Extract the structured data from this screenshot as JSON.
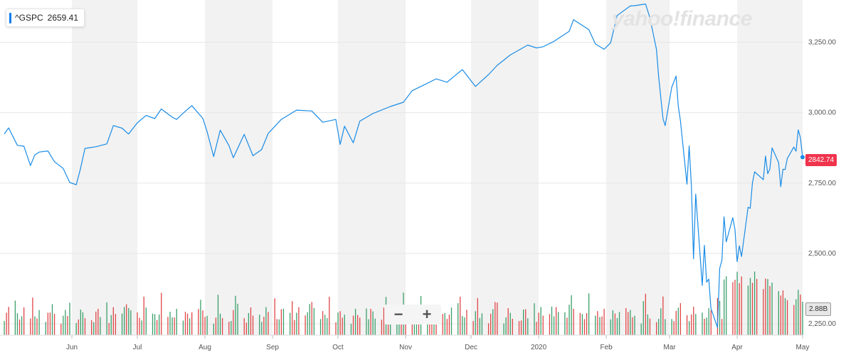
{
  "legend": {
    "ticker": "^GSPC",
    "value": "2659.41"
  },
  "watermark": "yahoo!finance",
  "last_price_tag": "2842.74",
  "volume_tag": "2.88B",
  "zoom": {
    "minus": "−",
    "plus": "+"
  },
  "colors": {
    "line": "#1a8ce6",
    "up": "#3a9f6a",
    "down": "#e04646",
    "band": "#f2f2f2",
    "price_tag": "#f0344d"
  },
  "icons": {
    "zoom_out": "minus-icon",
    "zoom_in": "plus-icon"
  },
  "chart_data": {
    "type": "line",
    "title": "",
    "y_ticks": [
      "2,250.00",
      "2,500.00",
      "2,750.00",
      "3,000.00",
      "3,250.00"
    ],
    "y_tick_values": [
      2250,
      2500,
      2750,
      3000,
      3250
    ],
    "ylim": [
      2210,
      3390
    ],
    "x_ticks": [
      "Jun",
      "Jul",
      "Aug",
      "Sep",
      "Oct",
      "Nov",
      "Dec",
      "2020",
      "Feb",
      "Mar",
      "Apr",
      "May"
    ],
    "x_tick_dates": [
      "2019-06-01",
      "2019-07-01",
      "2019-08-01",
      "2019-09-01",
      "2019-10-01",
      "2019-11-01",
      "2019-12-01",
      "2020-01-01",
      "2020-02-01",
      "2020-03-01",
      "2020-04-01",
      "2020-05-01"
    ],
    "x_start": "2019-05-01",
    "x_end": "2020-05-01",
    "grid": true,
    "series": [
      {
        "values": [
          [
            "2019-05-01",
            2924
          ],
          [
            "2019-05-03",
            2946
          ],
          [
            "2019-05-07",
            2884
          ],
          [
            "2019-05-10",
            2881
          ],
          [
            "2019-05-13",
            2812
          ],
          [
            "2019-05-15",
            2850
          ],
          [
            "2019-05-17",
            2860
          ],
          [
            "2019-05-21",
            2864
          ],
          [
            "2019-05-24",
            2826
          ],
          [
            "2019-05-28",
            2802
          ],
          [
            "2019-05-31",
            2752
          ],
          [
            "2019-06-03",
            2744
          ],
          [
            "2019-06-05",
            2803
          ],
          [
            "2019-06-07",
            2873
          ],
          [
            "2019-06-12",
            2879
          ],
          [
            "2019-06-17",
            2889
          ],
          [
            "2019-06-20",
            2954
          ],
          [
            "2019-06-24",
            2945
          ],
          [
            "2019-06-27",
            2924
          ],
          [
            "2019-07-01",
            2964
          ],
          [
            "2019-07-05",
            2990
          ],
          [
            "2019-07-09",
            2979
          ],
          [
            "2019-07-12",
            3013
          ],
          [
            "2019-07-17",
            2984
          ],
          [
            "2019-07-19",
            2976
          ],
          [
            "2019-07-23",
            3005
          ],
          [
            "2019-07-26",
            3025
          ],
          [
            "2019-07-31",
            2980
          ],
          [
            "2019-08-02",
            2932
          ],
          [
            "2019-08-05",
            2844
          ],
          [
            "2019-08-08",
            2938
          ],
          [
            "2019-08-12",
            2883
          ],
          [
            "2019-08-14",
            2840
          ],
          [
            "2019-08-19",
            2923
          ],
          [
            "2019-08-23",
            2847
          ],
          [
            "2019-08-27",
            2869
          ],
          [
            "2019-08-30",
            2926
          ],
          [
            "2019-09-05",
            2976
          ],
          [
            "2019-09-12",
            3009
          ],
          [
            "2019-09-19",
            3006
          ],
          [
            "2019-09-24",
            2966
          ],
          [
            "2019-09-30",
            2976
          ],
          [
            "2019-10-02",
            2887
          ],
          [
            "2019-10-04",
            2952
          ],
          [
            "2019-10-08",
            2893
          ],
          [
            "2019-10-11",
            2970
          ],
          [
            "2019-10-17",
            2997
          ],
          [
            "2019-10-25",
            3022
          ],
          [
            "2019-10-31",
            3037
          ],
          [
            "2019-11-04",
            3078
          ],
          [
            "2019-11-08",
            3093
          ],
          [
            "2019-11-15",
            3120
          ],
          [
            "2019-11-20",
            3108
          ],
          [
            "2019-11-27",
            3153
          ],
          [
            "2019-12-03",
            3093
          ],
          [
            "2019-12-09",
            3135
          ],
          [
            "2019-12-13",
            3168
          ],
          [
            "2019-12-19",
            3205
          ],
          [
            "2019-12-27",
            3240
          ],
          [
            "2019-12-31",
            3230
          ],
          [
            "2020-01-03",
            3234
          ],
          [
            "2020-01-08",
            3253
          ],
          [
            "2020-01-15",
            3289
          ],
          [
            "2020-01-17",
            3330
          ],
          [
            "2020-01-24",
            3295
          ],
          [
            "2020-01-27",
            3244
          ],
          [
            "2020-01-31",
            3225
          ],
          [
            "2020-02-03",
            3248
          ],
          [
            "2020-02-06",
            3345
          ],
          [
            "2020-02-12",
            3379
          ],
          [
            "2020-02-14",
            3380
          ],
          [
            "2020-02-19",
            3386
          ],
          [
            "2020-02-21",
            3337
          ],
          [
            "2020-02-24",
            3225
          ],
          [
            "2020-02-25",
            3128
          ],
          [
            "2020-02-27",
            2979
          ],
          [
            "2020-02-28",
            2954
          ],
          [
            "2020-03-02",
            3090
          ],
          [
            "2020-03-04",
            3130
          ],
          [
            "2020-03-05",
            3023
          ],
          [
            "2020-03-06",
            2972
          ],
          [
            "2020-03-09",
            2746
          ],
          [
            "2020-03-10",
            2882
          ],
          [
            "2020-03-11",
            2741
          ],
          [
            "2020-03-12",
            2481
          ],
          [
            "2020-03-13",
            2711
          ],
          [
            "2020-03-16",
            2386
          ],
          [
            "2020-03-17",
            2529
          ],
          [
            "2020-03-18",
            2398
          ],
          [
            "2020-03-19",
            2409
          ],
          [
            "2020-03-20",
            2305
          ],
          [
            "2020-03-23",
            2237
          ],
          [
            "2020-03-24",
            2447
          ],
          [
            "2020-03-25",
            2476
          ],
          [
            "2020-03-26",
            2630
          ],
          [
            "2020-03-27",
            2541
          ],
          [
            "2020-03-30",
            2627
          ],
          [
            "2020-03-31",
            2585
          ],
          [
            "2020-04-01",
            2471
          ],
          [
            "2020-04-02",
            2527
          ],
          [
            "2020-04-03",
            2489
          ],
          [
            "2020-04-06",
            2664
          ],
          [
            "2020-04-07",
            2660
          ],
          [
            "2020-04-08",
            2750
          ],
          [
            "2020-04-09",
            2790
          ],
          [
            "2020-04-13",
            2762
          ],
          [
            "2020-04-14",
            2846
          ],
          [
            "2020-04-15",
            2783
          ],
          [
            "2020-04-16",
            2800
          ],
          [
            "2020-04-17",
            2875
          ],
          [
            "2020-04-20",
            2823
          ],
          [
            "2020-04-21",
            2737
          ],
          [
            "2020-04-22",
            2799
          ],
          [
            "2020-04-23",
            2798
          ],
          [
            "2020-04-24",
            2837
          ],
          [
            "2020-04-27",
            2878
          ],
          [
            "2020-04-28",
            2863
          ],
          [
            "2020-04-29",
            2939
          ],
          [
            "2020-04-30",
            2912
          ],
          [
            "2020-05-01",
            2842
          ]
        ]
      }
    ]
  }
}
